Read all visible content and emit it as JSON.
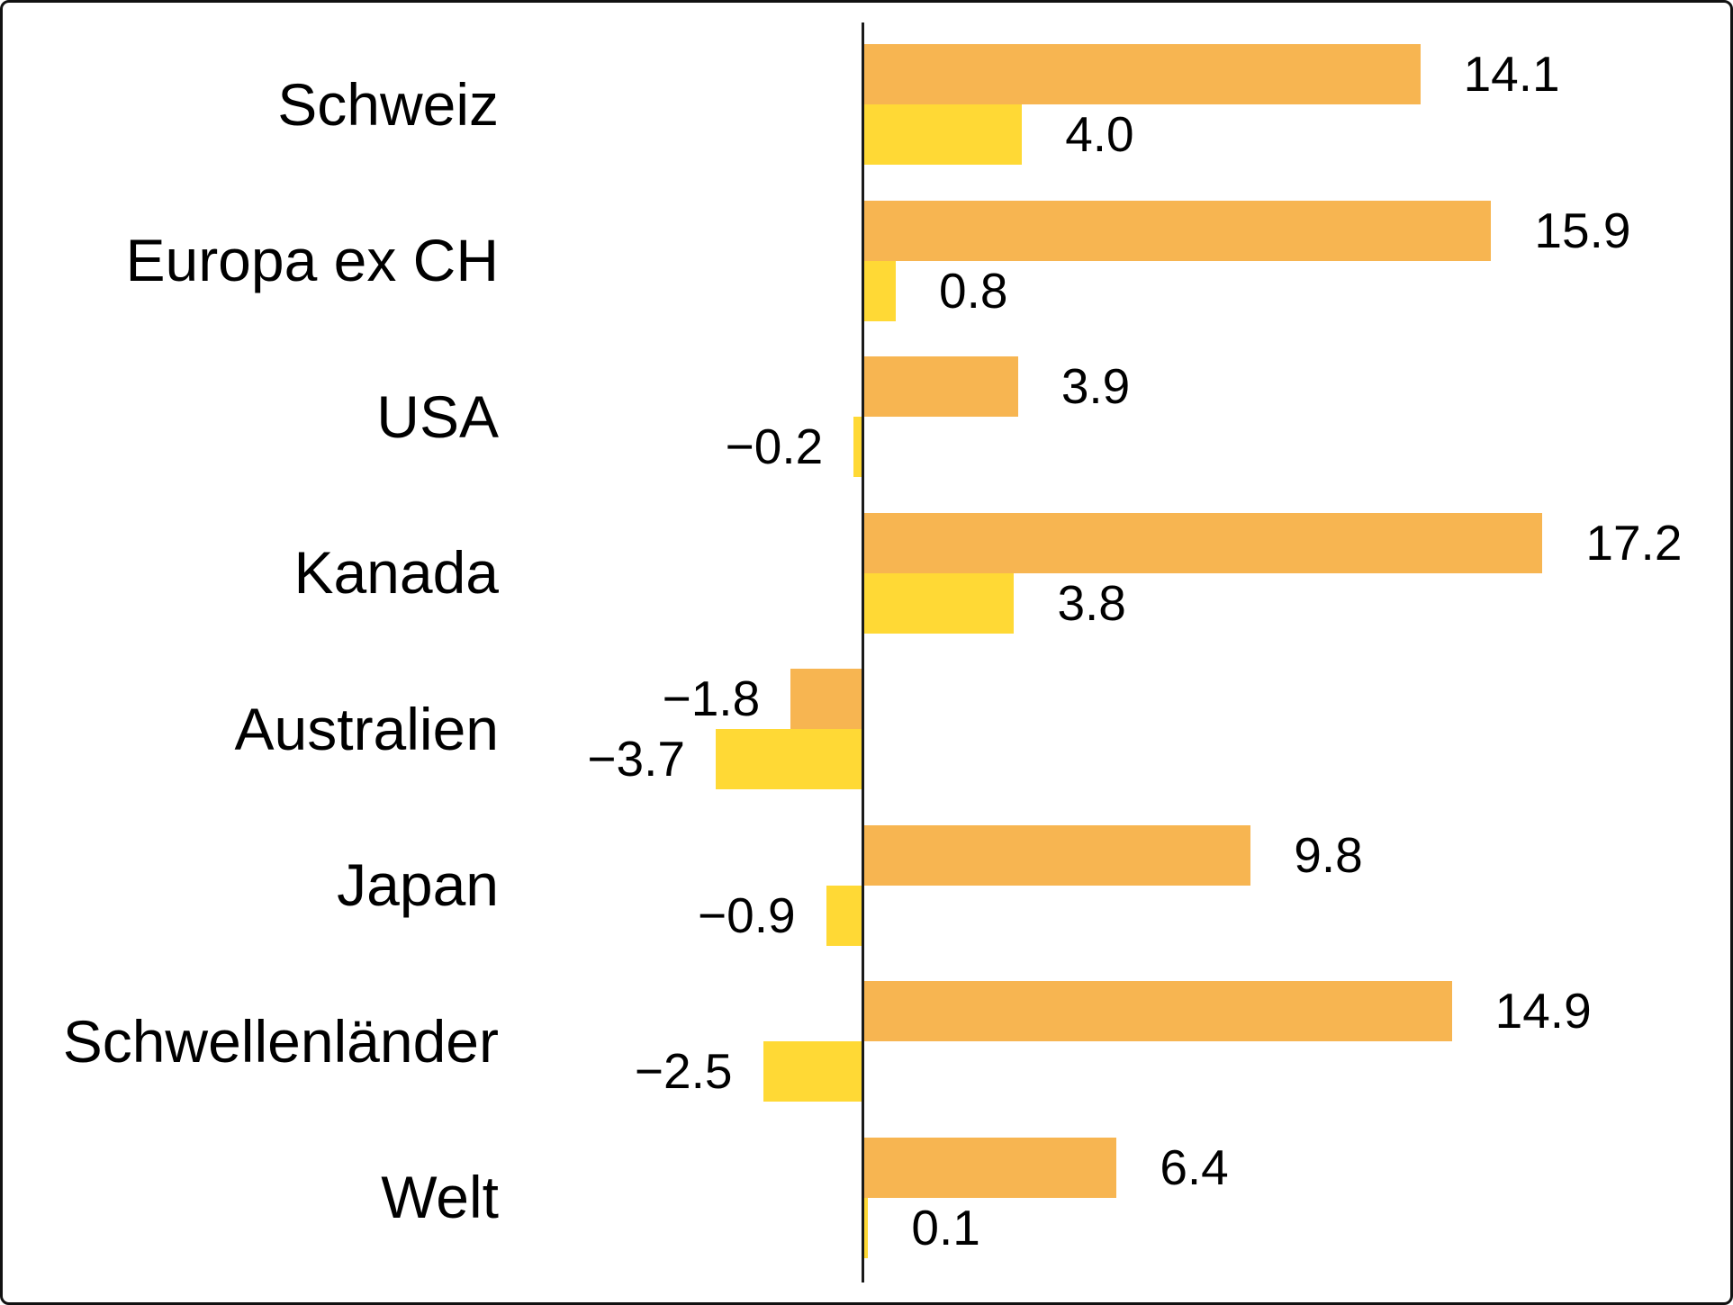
{
  "chart_data": {
    "type": "bar",
    "orientation": "horizontal",
    "title": "",
    "xlabel": "",
    "ylabel": "",
    "xlim": [
      -4.5,
      22
    ],
    "grid": false,
    "legend": null,
    "categories": [
      "Schweiz",
      "Europa ex CH",
      "USA",
      "Kanada",
      "Australien",
      "Japan",
      "Schwellenländer",
      "Welt"
    ],
    "series": [
      {
        "name": "orange-series",
        "color": "#F7B551",
        "values": [
          14.1,
          15.9,
          3.9,
          17.2,
          -1.8,
          9.8,
          14.9,
          6.4
        ],
        "labels": [
          "14.1",
          "15.9",
          "3.9",
          "17.2",
          "−1.8",
          "9.8",
          "14.9",
          "6.4"
        ]
      },
      {
        "name": "yellow-series",
        "color": "#FFD935",
        "values": [
          4.0,
          0.8,
          -0.2,
          3.8,
          -3.7,
          -0.9,
          -2.5,
          0.1
        ],
        "labels": [
          "4.0",
          "0.8",
          "−0.2",
          "3.8",
          "−3.7",
          "−0.9",
          "−2.5",
          "0.1"
        ]
      }
    ]
  },
  "styles": {
    "background": "#ffffff",
    "border_color": "#111111",
    "axis_color": "#1a1a1a",
    "text_color": "#000000",
    "bar_orange": "#F7B551",
    "bar_yellow": "#FFD935"
  }
}
